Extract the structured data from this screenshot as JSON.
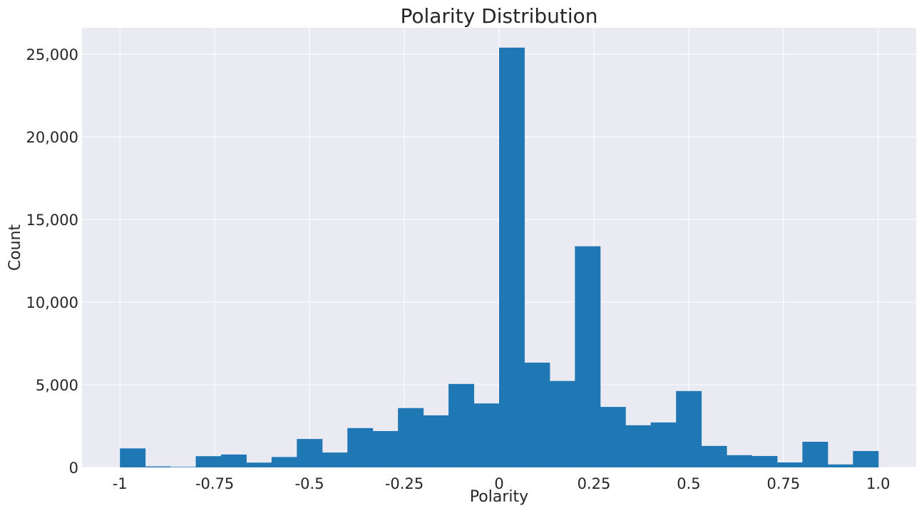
{
  "chart_data": {
    "type": "bar",
    "title": "Polarity Distribution",
    "xlabel": "Polarity",
    "ylabel": "Count",
    "xlim": [
      -1.1,
      1.1
    ],
    "ylim": [
      0,
      26600
    ],
    "x_ticks": [
      {
        "value": -1,
        "label": "-1"
      },
      {
        "value": -0.75,
        "label": "-0.75"
      },
      {
        "value": -0.5,
        "label": "-0.5"
      },
      {
        "value": -0.25,
        "label": "-0.25"
      },
      {
        "value": 0,
        "label": "0"
      },
      {
        "value": 0.25,
        "label": "0.25"
      },
      {
        "value": 0.5,
        "label": "0.5"
      },
      {
        "value": 0.75,
        "label": "0.75"
      },
      {
        "value": 1.0,
        "label": "1.0"
      }
    ],
    "y_ticks": [
      {
        "value": 0,
        "label": "0"
      },
      {
        "value": 5000,
        "label": "5,000"
      },
      {
        "value": 10000,
        "label": "10,000"
      },
      {
        "value": 15000,
        "label": "15,000"
      },
      {
        "value": 20000,
        "label": "20,000"
      },
      {
        "value": 25000,
        "label": "25,000"
      }
    ],
    "bin_range": [
      -1,
      1
    ],
    "bins": 30,
    "values": [
      1150,
      60,
      30,
      680,
      780,
      290,
      630,
      1720,
      900,
      2380,
      2200,
      3590,
      3150,
      5050,
      3870,
      25400,
      6340,
      5230,
      13380,
      3660,
      2550,
      2720,
      4620,
      1300,
      740,
      690,
      300,
      1550,
      180,
      990
    ],
    "grid": true,
    "colors": {
      "bar": "#1f77b4",
      "background": "#eaeaf2",
      "grid": "#ffffff"
    }
  }
}
